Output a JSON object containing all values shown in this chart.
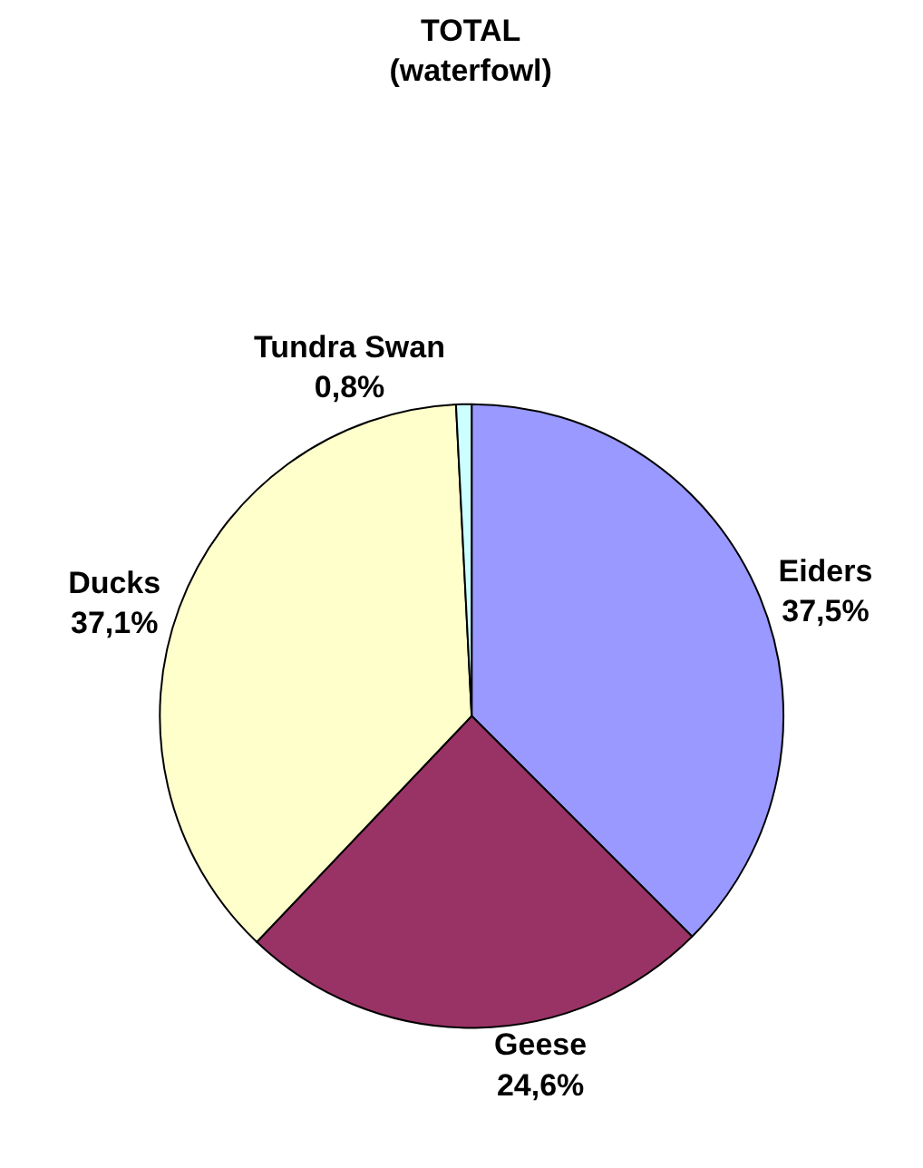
{
  "chart_data": {
    "type": "pie",
    "title": "TOTAL\n(waterfowl)",
    "categories": [
      "Eiders",
      "Geese",
      "Ducks",
      "Tundra Swan"
    ],
    "values": [
      37.5,
      24.6,
      37.1,
      0.8
    ],
    "value_labels": [
      "37,5%",
      "24,6%",
      "37,1%",
      "0,8%"
    ],
    "colors": [
      "#9999ff",
      "#993366",
      "#ffffcc",
      "#ccffff"
    ],
    "legend": false
  }
}
